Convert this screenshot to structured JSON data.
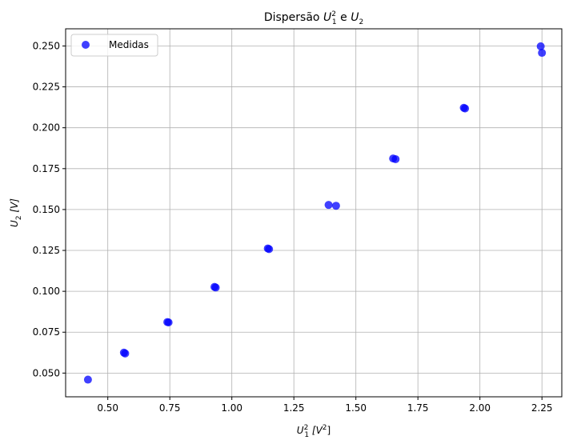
{
  "chart_data": {
    "type": "scatter",
    "title": {
      "main": "Dispersão",
      "u1_symbol": "U",
      "u1_sub": "1",
      "u1_sup": "2",
      "joiner": "e",
      "u2_symbol": "U",
      "u2_sub": "2"
    },
    "xlabel": {
      "symbol": "U",
      "sub": "1",
      "sup": "2",
      "unit_open": "[V",
      "unit_sup": "2",
      "unit_close": "]"
    },
    "ylabel": {
      "symbol": "U",
      "sub": "2",
      "unit": "[V]"
    },
    "xlim": [
      0.33,
      2.33
    ],
    "ylim": [
      0.0355,
      0.2605
    ],
    "xticks": [
      0.5,
      0.75,
      1.0,
      1.25,
      1.5,
      1.75,
      2.0,
      2.25
    ],
    "xtick_labels": [
      "0.50",
      "0.75",
      "1.00",
      "1.25",
      "1.50",
      "1.75",
      "2.00",
      "2.25"
    ],
    "yticks": [
      0.05,
      0.075,
      0.1,
      0.125,
      0.15,
      0.175,
      0.2,
      0.225,
      0.25
    ],
    "ytick_labels": [
      "0.050",
      "0.075",
      "0.100",
      "0.125",
      "0.150",
      "0.175",
      "0.200",
      "0.225",
      "0.250"
    ],
    "grid": true,
    "legend_position": "upper-left",
    "series": [
      {
        "name": "Medidas",
        "color": "#0000ff",
        "points": [
          {
            "x": 0.42,
            "y": 0.046
          },
          {
            "x": 0.565,
            "y": 0.0625
          },
          {
            "x": 0.57,
            "y": 0.062
          },
          {
            "x": 0.74,
            "y": 0.0812
          },
          {
            "x": 0.745,
            "y": 0.081
          },
          {
            "x": 0.93,
            "y": 0.1027
          },
          {
            "x": 0.935,
            "y": 0.1023
          },
          {
            "x": 1.145,
            "y": 0.1262
          },
          {
            "x": 1.15,
            "y": 0.1258
          },
          {
            "x": 1.39,
            "y": 0.1528
          },
          {
            "x": 1.42,
            "y": 0.1523
          },
          {
            "x": 1.65,
            "y": 0.1812
          },
          {
            "x": 1.66,
            "y": 0.1808
          },
          {
            "x": 1.935,
            "y": 0.2122
          },
          {
            "x": 1.94,
            "y": 0.2118
          },
          {
            "x": 2.245,
            "y": 0.2498
          },
          {
            "x": 2.25,
            "y": 0.2458
          }
        ]
      }
    ]
  }
}
